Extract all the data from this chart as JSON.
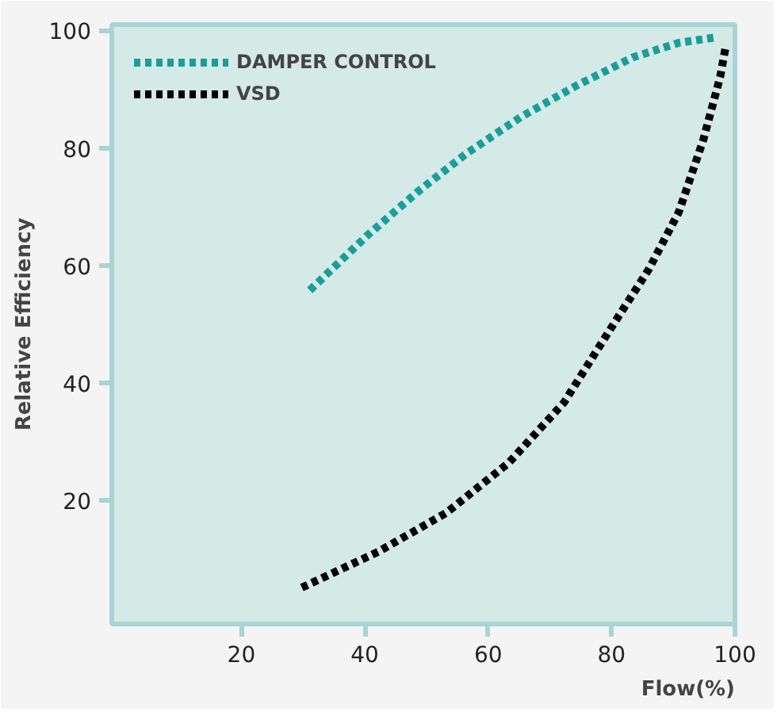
{
  "chart_data": {
    "type": "line",
    "xlabel": "Flow(%)",
    "ylabel": "Relative Efficiency",
    "xlim": [
      -1,
      100
    ],
    "ylim": [
      -1,
      101
    ],
    "xticks": [
      20,
      40,
      60,
      80,
      100
    ],
    "yticks": [
      20,
      40,
      60,
      80,
      100
    ],
    "grid": false,
    "legend": "top left",
    "line_style": "dotted",
    "marker": "none",
    "series": [
      {
        "name": "DAMPER CONTROL",
        "color": "#1a9e9a",
        "x": [
          31.1,
          40.4,
          48.4,
          56.4,
          65.2,
          74.1,
          83.4,
          90.9,
          96.7
        ],
        "values": [
          55.8,
          65.1,
          72.4,
          79.0,
          85.2,
          90.5,
          95.4,
          97.9,
          98.8
        ]
      },
      {
        "name": "VSD",
        "color": "#000000",
        "x": [
          29.8,
          42.2,
          53.2,
          63.4,
          72.3,
          80.3,
          86.0,
          90.9,
          94.9,
          97.6,
          98.5
        ],
        "values": [
          5.2,
          11.3,
          17.9,
          26.5,
          36.7,
          50.0,
          59.3,
          69.1,
          81.5,
          92.1,
          97.3
        ]
      }
    ]
  }
}
